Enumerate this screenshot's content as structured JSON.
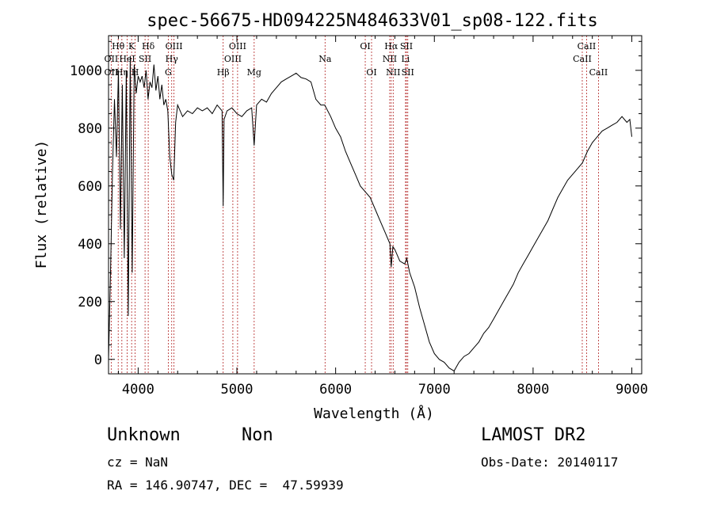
{
  "chart_data": {
    "type": "line",
    "title": "spec-56675-HD094225N484633V01_sp08-122.fits",
    "xlabel": "Wavelength (Å)",
    "ylabel": "Flux (relative)",
    "xlim": [
      3700,
      9100
    ],
    "ylim": [
      -50,
      1120
    ],
    "x_ticks": [
      4000,
      5000,
      6000,
      7000,
      8000,
      9000
    ],
    "y_ticks": [
      0,
      200,
      400,
      600,
      800,
      1000
    ],
    "grid": false,
    "line_color": "#000000",
    "marker_line_color": "#b22222",
    "series": [
      {
        "x": [
          3700,
          3720,
          3740,
          3760,
          3780,
          3800,
          3820,
          3840,
          3860,
          3880,
          3900,
          3920,
          3940,
          3960,
          3980,
          4000,
          4020,
          4040,
          4060,
          4080,
          4100,
          4120,
          4140,
          4160,
          4180,
          4200,
          4220,
          4240,
          4260,
          4280,
          4300,
          4320,
          4340,
          4360,
          4380,
          4400,
          4450,
          4500,
          4550,
          4600,
          4650,
          4700,
          4750,
          4800,
          4850,
          4861,
          4870,
          4900,
          4950,
          5000,
          5050,
          5100,
          5150,
          5175,
          5200,
          5250,
          5300,
          5350,
          5400,
          5450,
          5500,
          5550,
          5600,
          5650,
          5700,
          5750,
          5800,
          5850,
          5890,
          5950,
          6000,
          6050,
          6100,
          6150,
          6200,
          6250,
          6300,
          6350,
          6400,
          6450,
          6500,
          6550,
          6563,
          6580,
          6600,
          6650,
          6700,
          6720,
          6750,
          6800,
          6850,
          6900,
          6950,
          7000,
          7050,
          7100,
          7150,
          7200,
          7250,
          7300,
          7350,
          7400,
          7450,
          7500,
          7550,
          7600,
          7650,
          7700,
          7750,
          7800,
          7850,
          7900,
          7950,
          8000,
          8050,
          8100,
          8150,
          8200,
          8250,
          8300,
          8350,
          8400,
          8450,
          8500,
          8550,
          8600,
          8650,
          8700,
          8750,
          8800,
          8850,
          8900,
          8950,
          8980,
          9000
        ],
        "y": [
          0,
          300,
          650,
          900,
          700,
          1000,
          450,
          950,
          350,
          1000,
          150,
          1050,
          300,
          1020,
          920,
          980,
          960,
          980,
          940,
          1000,
          900,
          960,
          940,
          1020,
          930,
          980,
          900,
          950,
          880,
          900,
          860,
          700,
          640,
          620,
          820,
          880,
          840,
          860,
          850,
          870,
          860,
          870,
          850,
          880,
          860,
          530,
          830,
          860,
          870,
          850,
          840,
          860,
          870,
          740,
          880,
          900,
          890,
          920,
          940,
          960,
          970,
          980,
          990,
          975,
          970,
          960,
          900,
          880,
          880,
          840,
          800,
          770,
          720,
          680,
          640,
          600,
          580,
          560,
          520,
          480,
          440,
          400,
          320,
          390,
          380,
          340,
          330,
          350,
          300,
          250,
          180,
          120,
          60,
          20,
          0,
          -10,
          -30,
          -40,
          -10,
          10,
          20,
          40,
          60,
          90,
          110,
          140,
          170,
          200,
          230,
          260,
          300,
          330,
          360,
          390,
          420,
          450,
          480,
          520,
          560,
          590,
          620,
          640,
          660,
          680,
          720,
          750,
          770,
          790,
          800,
          810,
          820,
          840,
          820,
          830,
          770
        ]
      }
    ],
    "line_labels": [
      {
        "name": "OII",
        "wl": 3727,
        "row": 2
      },
      {
        "name": "OII",
        "wl": 3727,
        "row": 4
      },
      {
        "name": "Hθ",
        "wl": 3798,
        "row": 1
      },
      {
        "name": "Hη",
        "wl": 3835,
        "row": 4
      },
      {
        "name": "HeI",
        "wl": 3889,
        "row": 2
      },
      {
        "name": "K",
        "wl": 3934,
        "row": 1
      },
      {
        "name": "H",
        "wl": 3969,
        "row": 4
      },
      {
        "name": "SII",
        "wl": 4070,
        "row": 2
      },
      {
        "name": "Hδ",
        "wl": 4102,
        "row": 1
      },
      {
        "name": "Hγ",
        "wl": 4340,
        "row": 2
      },
      {
        "name": "G",
        "wl": 4305,
        "row": 3
      },
      {
        "name": "OIII",
        "wl": 4363,
        "row": 1
      },
      {
        "name": "Hβ",
        "wl": 4861,
        "row": 3
      },
      {
        "name": "OIII",
        "wl": 4959,
        "row": 2
      },
      {
        "name": "OIII",
        "wl": 5007,
        "row": 1
      },
      {
        "name": "Mg",
        "wl": 5175,
        "row": 3
      },
      {
        "name": "Na",
        "wl": 5893,
        "row": 2
      },
      {
        "name": "OI",
        "wl": 6300,
        "row": 1
      },
      {
        "name": "OI",
        "wl": 6364,
        "row": 3
      },
      {
        "name": "Hα",
        "wl": 6563,
        "row": 1
      },
      {
        "name": "NII",
        "wl": 6548,
        "row": 2
      },
      {
        "name": "NII",
        "wl": 6583,
        "row": 3
      },
      {
        "name": "SII",
        "wl": 6717,
        "row": 1
      },
      {
        "name": "Li",
        "wl": 6708,
        "row": 2
      },
      {
        "name": "SII",
        "wl": 6731,
        "row": 3
      },
      {
        "name": "CaII",
        "wl": 8542,
        "row": 1
      },
      {
        "name": "CaII",
        "wl": 8498,
        "row": 2
      },
      {
        "name": "CaII",
        "wl": 8662,
        "row": 3
      }
    ]
  },
  "info": {
    "class": "Unknown",
    "subclass": "Non",
    "survey": "LAMOST DR2",
    "cz": "cz = NaN",
    "obs_date": "Obs-Date: 20140117",
    "radec": "RA = 146.90747, DEC =  47.59939"
  }
}
